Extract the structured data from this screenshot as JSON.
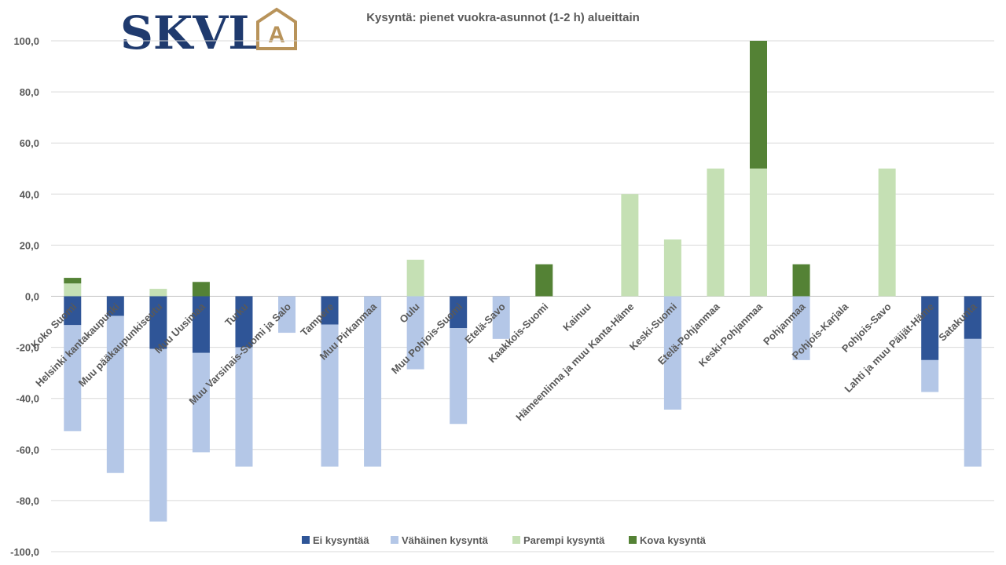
{
  "logo": {
    "text": "SKVL",
    "letter": "A",
    "text_color": "#1f3a6e",
    "accent_color": "#b8935a"
  },
  "chart_data": {
    "type": "bar",
    "stacked": true,
    "title": "Kysyntä: pienet vuokra-asunnot  (1-2 h) alueittain",
    "xlabel": "",
    "ylabel": "",
    "ylim": [
      -100,
      100
    ],
    "yticks": [
      -100,
      -80,
      -60,
      -40,
      -20,
      0,
      20,
      40,
      60,
      80,
      100
    ],
    "ytick_labels": [
      "-100,0",
      "-80,0",
      "-60,0",
      "-40,0",
      "-20,0",
      "0,0",
      "20,0",
      "40,0",
      "60,0",
      "80,0",
      "100,0"
    ],
    "grid": true,
    "legend_position": "bottom",
    "categories": [
      "Koko Suomi",
      "Helsinki kantakaupunki",
      "Muu pääkaupunkiseutu",
      "Muu Uusimaa",
      "Turku",
      "Muu Varsinais-Suomi ja Salo",
      "Tampere",
      "Muu Pirkanmaa",
      "Oulu",
      "Muu Pohjois-Suomi",
      "Etelä-Savo",
      "Kaakkois-Suomi",
      "Kainuu",
      "Hämeenlinna ja muu Kanta-Häme",
      "Keski-Suomi",
      "Etelä-Pohjanmaa",
      "Keski-Pohjanmaa",
      "Pohjanmaa",
      "Pohjois-Karjala",
      "Pohjois-Savo",
      "Lahti ja muu Päijät-Häme",
      "Satakunta"
    ],
    "series": [
      {
        "name": "Ei kysyntää",
        "color": "#2f5597",
        "direction": "negative",
        "values": [
          11.3,
          7.7,
          20.6,
          22.2,
          20.0,
          0,
          11.1,
          0,
          0,
          12.5,
          0,
          0,
          0,
          0,
          0,
          0,
          0,
          0,
          0,
          0,
          25.0,
          16.7
        ]
      },
      {
        "name": "Vähäinen kysyntä",
        "color": "#b4c7e7",
        "direction": "negative",
        "values": [
          41.5,
          61.5,
          67.6,
          38.9,
          46.7,
          14.3,
          55.6,
          66.7,
          28.6,
          37.5,
          16.7,
          0,
          0,
          0,
          44.4,
          0,
          0,
          25.0,
          0,
          0,
          12.5,
          50.0
        ]
      },
      {
        "name": "Parempi kysyntä",
        "color": "#c5e0b4",
        "direction": "positive",
        "values": [
          5.0,
          0,
          2.9,
          0,
          0,
          0,
          0,
          0,
          14.3,
          0,
          0,
          0,
          0,
          40.0,
          22.2,
          50.0,
          50.0,
          0,
          0,
          50.0,
          0,
          0
        ]
      },
      {
        "name": "Kova kysyntä",
        "color": "#548235",
        "direction": "positive",
        "values": [
          2.2,
          0,
          0,
          5.6,
          0,
          0,
          0,
          0,
          0,
          0,
          0,
          12.5,
          0,
          0,
          0,
          0,
          50.0,
          12.5,
          0,
          0,
          0,
          0
        ]
      }
    ]
  }
}
